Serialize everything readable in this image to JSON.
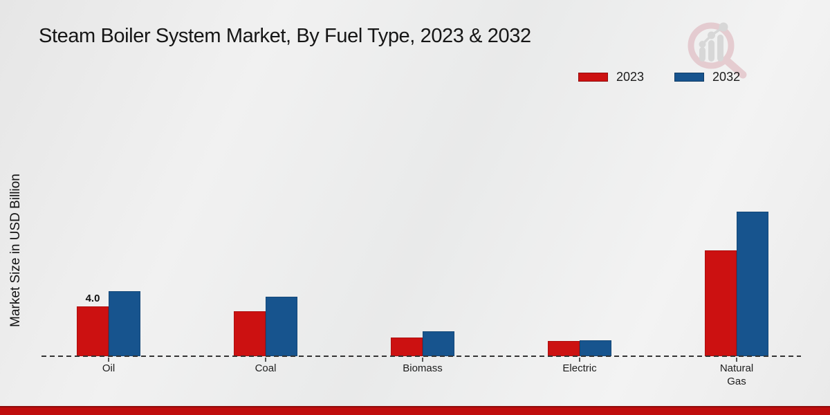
{
  "title": "Steam Boiler System Market, By Fuel Type, 2023 & 2032",
  "y_axis_label": "Market Size in USD Billion",
  "legend": {
    "items": [
      {
        "label": "2023",
        "color": "#cc1111"
      },
      {
        "label": "2032",
        "color": "#17548e"
      }
    ]
  },
  "watermark": {
    "icon": "magnifier-bar-chart-logo"
  },
  "colors": {
    "series_2023": "#cc1111",
    "series_2032": "#17548e",
    "footer_accent": "#bf0d0d",
    "axis": "#333333",
    "background": "#ececec"
  },
  "chart_data": {
    "type": "bar",
    "title": "Steam Boiler System Market, By Fuel Type, 2023 & 2032",
    "categories": [
      "Oil",
      "Coal",
      "Biomass",
      "Electric",
      "Natural Gas"
    ],
    "series": [
      {
        "name": "2023",
        "color": "#cc1111",
        "values": [
          4.0,
          3.6,
          1.5,
          1.2,
          8.5
        ]
      },
      {
        "name": "2032",
        "color": "#17548e",
        "values": [
          5.2,
          4.8,
          2.0,
          1.3,
          11.6
        ]
      }
    ],
    "bar_value_labels": [
      {
        "category_index": 0,
        "series_index": 0,
        "text": "4.0"
      }
    ],
    "xlabel": "",
    "ylabel": "Market Size in USD Billion",
    "ylim": [
      0,
      12
    ],
    "grid": false,
    "legend_position": "top-right",
    "baseline_style": "dashed"
  }
}
